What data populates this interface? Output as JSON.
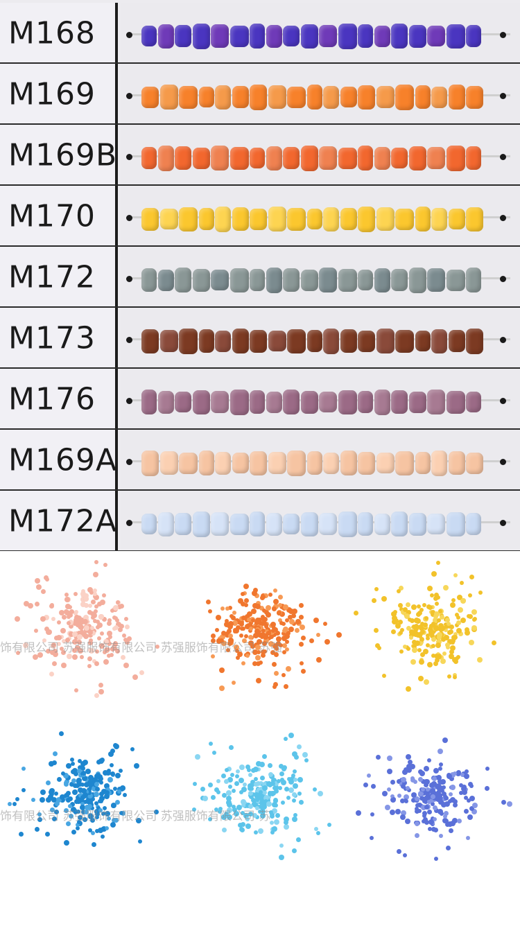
{
  "swatch_chart": {
    "rows": [
      {
        "code": "M168",
        "color": "#4a35c0",
        "alt": "#6f3ab8"
      },
      {
        "code": "M169",
        "color": "#f7812a",
        "alt": "#f59a4a"
      },
      {
        "code": "M169B",
        "color": "#f2672e",
        "alt": "#ef8150"
      },
      {
        "code": "M170",
        "color": "#fbc72e",
        "alt": "#fdd451"
      },
      {
        "code": "M172",
        "color": "#8a9796",
        "alt": "#7b8b8f"
      },
      {
        "code": "M173",
        "color": "#7c3a22",
        "alt": "#8a4a3a"
      },
      {
        "code": "M176",
        "color": "#9b6a86",
        "alt": "#a77a92"
      },
      {
        "code": "M169A",
        "color": "#f6c4a2",
        "alt": "#fbd0b2"
      },
      {
        "code": "M172A",
        "color": "#c9daf3",
        "alt": "#d6e3f7"
      }
    ]
  },
  "loose_beads": [
    {
      "color": "#f3ad9c",
      "hi": "#fbd2c6"
    },
    {
      "color": "#f0762e",
      "hi": "#f79a55"
    },
    {
      "color": "#f2c22a",
      "hi": "#f7d75a"
    },
    {
      "color": "#1e86cf",
      "hi": "#48a6e2"
    },
    {
      "color": "#5cc4ea",
      "hi": "#8ad6f2"
    },
    {
      "color": "#5a70d8",
      "hi": "#8596e6"
    }
  ],
  "watermark": {
    "line1": "饰有限公司   苏强服饰有限公司   苏强服饰有限公司   苏强",
    "line2": "饰有限公司   苏强服饰有限公司   苏强服饰有限公司   苏"
  }
}
